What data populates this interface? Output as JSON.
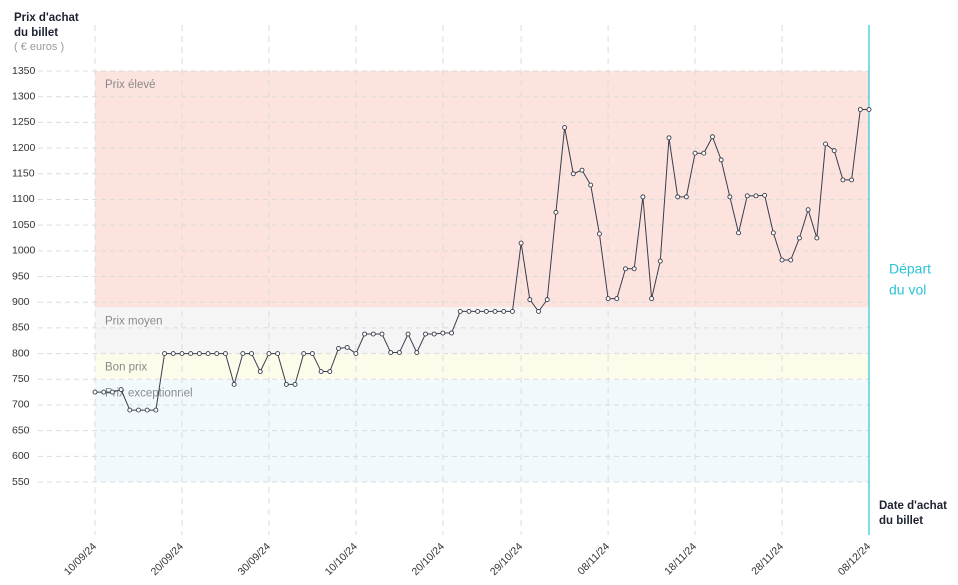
{
  "chart_data": {
    "type": "line",
    "y_label": [
      "Prix d'achat",
      "du billet"
    ],
    "y_unit": "( € euros )",
    "x_label": [
      "Date d'achat",
      "du billet"
    ],
    "annotation": {
      "lines": [
        "Départ",
        "du vol"
      ],
      "x": "2024-12-08",
      "color": "#29c4d6"
    },
    "bands": [
      {
        "label": "Prix élevé",
        "from": 890,
        "to": 1350,
        "color": "#fde3dd"
      },
      {
        "label": "Prix moyen",
        "from": 800,
        "to": 890,
        "color": "#f5f5f5"
      },
      {
        "label": "Bon prix",
        "from": 750,
        "to": 800,
        "color": "#fdfbea"
      },
      {
        "label": "Prix exceptionnel",
        "from": 550,
        "to": 750,
        "color": "#f2f9fc"
      }
    ],
    "xlim": [
      "2024-09-10",
      "2024-12-08"
    ],
    "xticks": [
      {
        "value": "2024-09-10",
        "label": "10/09/24"
      },
      {
        "value": "2024-09-20",
        "label": "20/09/24"
      },
      {
        "value": "2024-09-30",
        "label": "30/09/24"
      },
      {
        "value": "2024-10-10",
        "label": "10/10/24"
      },
      {
        "value": "2024-10-20",
        "label": "20/10/24"
      },
      {
        "value": "2024-10-29",
        "label": "29/10/24"
      },
      {
        "value": "2024-11-08",
        "label": "08/11/24"
      },
      {
        "value": "2024-11-18",
        "label": "18/11/24"
      },
      {
        "value": "2024-11-28",
        "label": "28/11/24"
      },
      {
        "value": "2024-12-08",
        "label": "08/12/24"
      }
    ],
    "ylim": [
      550,
      1350
    ],
    "yticks": [
      550,
      600,
      650,
      700,
      750,
      800,
      850,
      900,
      950,
      1000,
      1050,
      1100,
      1150,
      1200,
      1250,
      1300,
      1350
    ],
    "grid": true,
    "x": [
      "2024-09-10",
      "2024-09-11",
      "2024-09-12",
      "2024-09-13",
      "2024-09-14",
      "2024-09-15",
      "2024-09-16",
      "2024-09-17",
      "2024-09-18",
      "2024-09-19",
      "2024-09-20",
      "2024-09-21",
      "2024-09-22",
      "2024-09-23",
      "2024-09-24",
      "2024-09-25",
      "2024-09-26",
      "2024-09-27",
      "2024-09-28",
      "2024-09-29",
      "2024-09-30",
      "2024-10-01",
      "2024-10-02",
      "2024-10-03",
      "2024-10-04",
      "2024-10-05",
      "2024-10-06",
      "2024-10-07",
      "2024-10-08",
      "2024-10-09",
      "2024-10-10",
      "2024-10-11",
      "2024-10-12",
      "2024-10-13",
      "2024-10-14",
      "2024-10-15",
      "2024-10-16",
      "2024-10-17",
      "2024-10-18",
      "2024-10-19",
      "2024-10-20",
      "2024-10-21",
      "2024-10-22",
      "2024-10-23",
      "2024-10-24",
      "2024-10-25",
      "2024-10-26",
      "2024-10-27",
      "2024-10-28",
      "2024-10-29",
      "2024-10-30",
      "2024-10-31",
      "2024-11-01",
      "2024-11-02",
      "2024-11-03",
      "2024-11-04",
      "2024-11-05",
      "2024-11-06",
      "2024-11-07",
      "2024-11-08",
      "2024-11-09",
      "2024-11-10",
      "2024-11-11",
      "2024-11-12",
      "2024-11-13",
      "2024-11-14",
      "2024-11-15",
      "2024-11-16",
      "2024-11-17",
      "2024-11-18",
      "2024-11-19",
      "2024-11-20",
      "2024-11-21",
      "2024-11-22",
      "2024-11-23",
      "2024-11-24",
      "2024-11-25",
      "2024-11-26",
      "2024-11-27",
      "2024-11-28",
      "2024-11-29",
      "2024-11-30",
      "2024-12-01",
      "2024-12-02",
      "2024-12-03",
      "2024-12-04",
      "2024-12-05",
      "2024-12-06",
      "2024-12-07",
      "2024-12-08"
    ],
    "series": [
      {
        "name": "Prix",
        "color": "#3a3d4d",
        "values": [
          725,
          725,
          725,
          730,
          690,
          690,
          690,
          690,
          800,
          800,
          800,
          800,
          800,
          800,
          800,
          800,
          740,
          800,
          800,
          765,
          800,
          800,
          740,
          740,
          800,
          800,
          765,
          765,
          810,
          812,
          800,
          838,
          838,
          838,
          802,
          802,
          838,
          802,
          838,
          838,
          840,
          840,
          882,
          882,
          882,
          882,
          882,
          882,
          882,
          1015,
          905,
          882,
          905,
          1075,
          1240,
          1150,
          1157,
          1128,
          1033,
          907,
          907,
          965,
          965,
          1105,
          907,
          980,
          1220,
          1105,
          1105,
          1190,
          1190,
          1222,
          1177,
          1105,
          1035,
          1107,
          1107,
          1108,
          1035,
          982,
          982,
          1025,
          1080,
          1025,
          1208,
          1195,
          1138,
          1138,
          1275,
          1275
        ]
      }
    ]
  }
}
